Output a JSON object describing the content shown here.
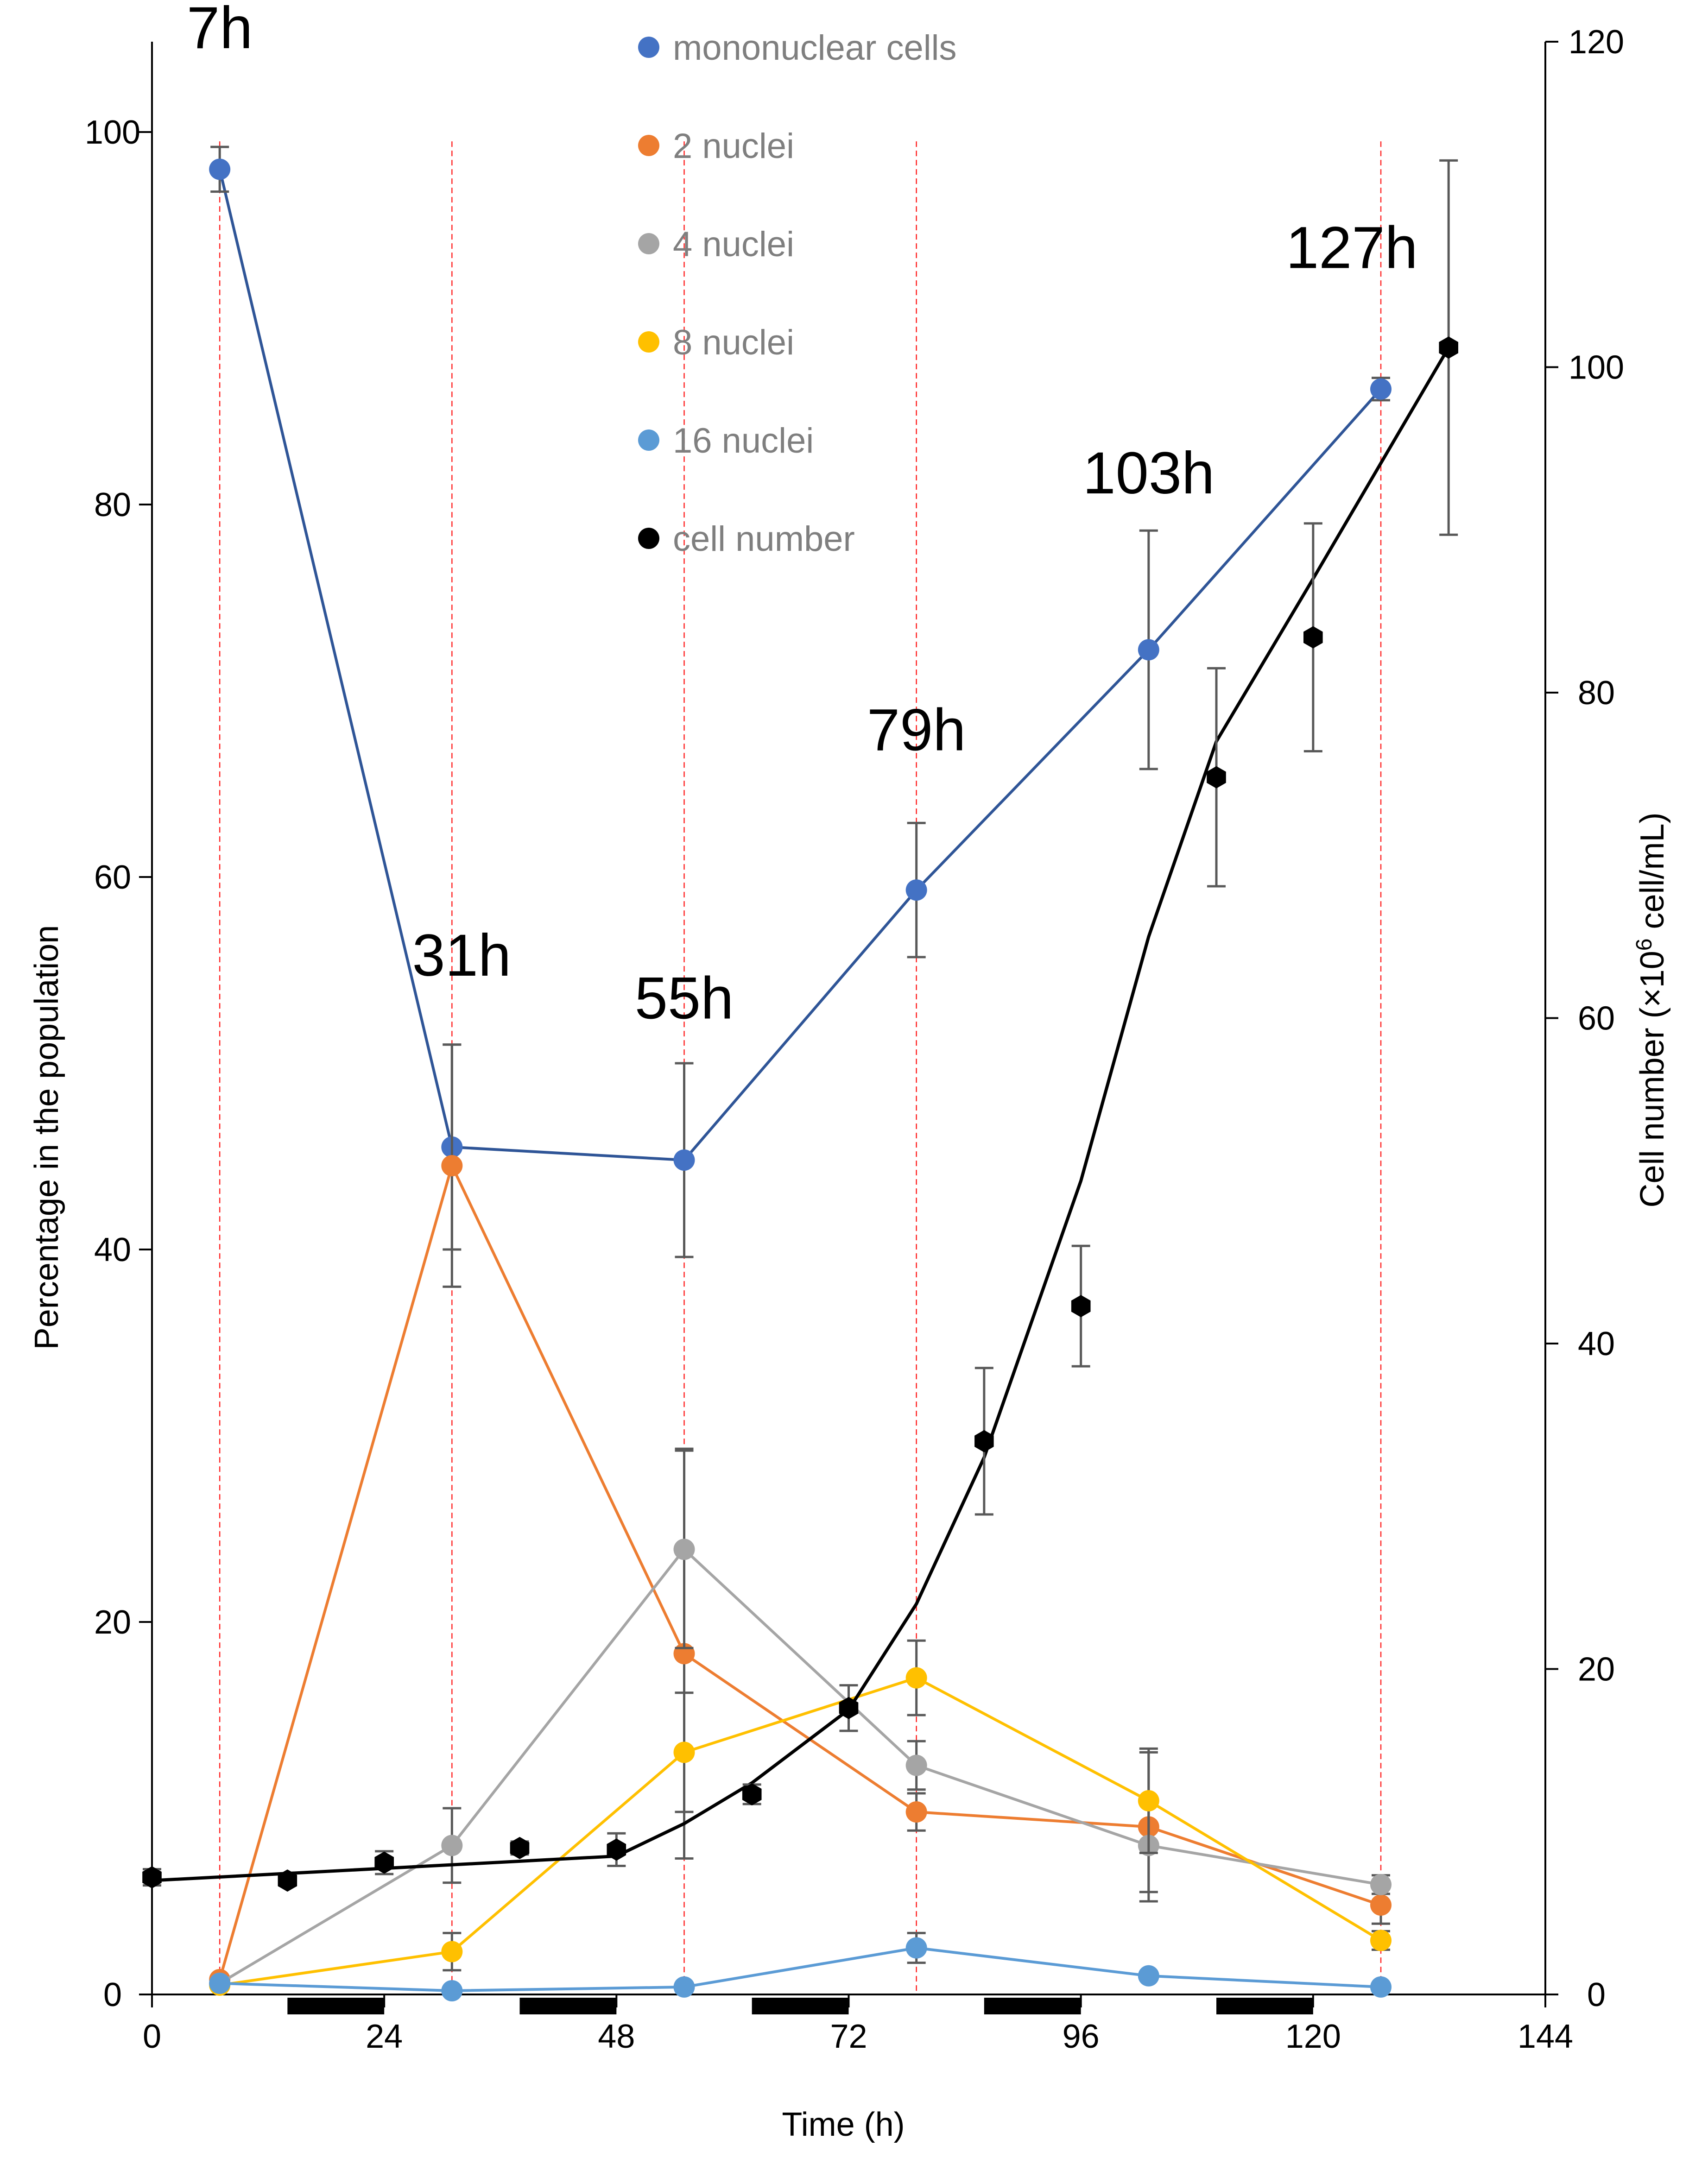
{
  "chart_data": {
    "type": "line",
    "xlabel": "Time (h)",
    "ylabel_left": "Percentage in the population",
    "ylabel_right_pre": "Cell number (×10",
    "ylabel_right_sup": "6",
    "ylabel_right_post": " cell/mL)",
    "xlim": [
      0,
      144
    ],
    "ylim_left": [
      0,
      100
    ],
    "ylim_right": [
      0,
      120
    ],
    "xticks": [
      0,
      24,
      48,
      72,
      96,
      120,
      144
    ],
    "yticks_left": [
      0,
      20,
      40,
      60,
      80,
      100
    ],
    "yticks_right": [
      0,
      20,
      40,
      60,
      80,
      100,
      120
    ],
    "dark_periods": [
      [
        14,
        24
      ],
      [
        38,
        48
      ],
      [
        62,
        72
      ],
      [
        86,
        96
      ],
      [
        110,
        120
      ]
    ],
    "time_labels": [
      {
        "text": "7h",
        "x": 7,
        "y": 104.5
      },
      {
        "text": "31h",
        "x": 32,
        "y": 54.7
      },
      {
        "text": "55h",
        "x": 55,
        "y": 52.4
      },
      {
        "text": "79h",
        "x": 79,
        "y": 66.8
      },
      {
        "text": "103h",
        "x": 103,
        "y": 80.6
      },
      {
        "text": "127h",
        "x": 124,
        "y": 92.7
      }
    ],
    "sampling_lines_x": [
      7,
      31,
      55,
      79,
      127
    ],
    "series": [
      {
        "name": "mononuclear cells",
        "color": "#4472C4",
        "line_color": "#2F5597",
        "axis": "left",
        "x": [
          7,
          31,
          55,
          79,
          103,
          127
        ],
        "values": [
          98,
          45.5,
          44.8,
          59.3,
          72.2,
          86.2
        ],
        "error": [
          1.2,
          5.5,
          5.2,
          3.6,
          6.4,
          0.6
        ],
        "line": [
          [
            7,
            98
          ],
          [
            31,
            45.5
          ],
          [
            55,
            44.8
          ],
          [
            79,
            59.3
          ],
          [
            103,
            72.2
          ],
          [
            127,
            86.2
          ]
        ]
      },
      {
        "name": "2 nuclei",
        "color": "#ED7D31",
        "line_color": "#ED7D31",
        "axis": "left",
        "x": [
          7,
          31,
          55,
          79,
          103,
          127
        ],
        "values": [
          0.8,
          44.5,
          18.3,
          9.8,
          9.0,
          4.8
        ],
        "error": [
          0,
          6.5,
          11,
          1.0,
          4.0,
          1.0
        ],
        "line": [
          [
            7,
            0.8
          ],
          [
            31,
            44.5
          ],
          [
            55,
            18.3
          ],
          [
            79,
            9.8
          ],
          [
            103,
            9.0
          ],
          [
            127,
            4.8
          ]
        ]
      },
      {
        "name": "4 nuclei",
        "color": "#A5A5A5",
        "line_color": "#A5A5A5",
        "axis": "left",
        "x": [
          7,
          31,
          55,
          79,
          103,
          127
        ],
        "values": [
          0.6,
          8.0,
          23.9,
          12.3,
          8.0,
          5.9
        ],
        "error": [
          0,
          2.0,
          5.3,
          1.3,
          2.5,
          0.5
        ],
        "line": [
          [
            7,
            0.6
          ],
          [
            31,
            8.0
          ],
          [
            55,
            23.9
          ],
          [
            79,
            12.3
          ],
          [
            103,
            8.0
          ],
          [
            127,
            5.9
          ]
        ]
      },
      {
        "name": "8 nuclei",
        "color": "#FFC000",
        "line_color": "#FFC000",
        "axis": "left",
        "x": [
          7,
          31,
          55,
          79,
          103,
          127
        ],
        "values": [
          0.5,
          2.3,
          13.0,
          17.0,
          10.4,
          2.9
        ],
        "error": [
          0,
          1.0,
          3.2,
          2.0,
          2.8,
          0.5
        ],
        "line": [
          [
            7,
            0.5
          ],
          [
            31,
            2.3
          ],
          [
            55,
            13.0
          ],
          [
            79,
            17.0
          ],
          [
            103,
            10.4
          ],
          [
            127,
            2.9
          ]
        ]
      },
      {
        "name": "16 nuclei",
        "color": "#5B9BD5",
        "line_color": "#5B9BD5",
        "axis": "left",
        "x": [
          7,
          31,
          55,
          79,
          103,
          127
        ],
        "values": [
          0.6,
          0.2,
          0.4,
          2.5,
          1.0,
          0.4
        ],
        "error": [
          0,
          0,
          0,
          0.8,
          0,
          0
        ],
        "line": [
          [
            7,
            0.6
          ],
          [
            31,
            0.2
          ],
          [
            55,
            0.4
          ],
          [
            79,
            2.5
          ],
          [
            103,
            1.0
          ],
          [
            127,
            0.4
          ]
        ]
      },
      {
        "name": "cell number",
        "color": "#000000",
        "line_color": "#000000",
        "axis": "right",
        "x": [
          0,
          14,
          24,
          38,
          48,
          62,
          72,
          86,
          96,
          110,
          120,
          134
        ],
        "values": [
          7.2,
          7.0,
          8.1,
          9.0,
          8.9,
          12.3,
          17.6,
          34.0,
          42.3,
          74.8,
          83.4,
          101.2
        ],
        "error": [
          0.5,
          0.3,
          0.7,
          0.4,
          1.0,
          0.6,
          1.4,
          4.5,
          3.7,
          6.7,
          7.0,
          11.5
        ],
        "line": [
          [
            0,
            7.0
          ],
          [
            48,
            8.5
          ],
          [
            55,
            10.5
          ],
          [
            62,
            13.0
          ],
          [
            72,
            17.5
          ],
          [
            79,
            24.0
          ],
          [
            86,
            33.0
          ],
          [
            96,
            50.0
          ],
          [
            103,
            65.0
          ],
          [
            110,
            77.0
          ],
          [
            120,
            87.0
          ],
          [
            134,
            101.2
          ]
        ]
      }
    ]
  }
}
